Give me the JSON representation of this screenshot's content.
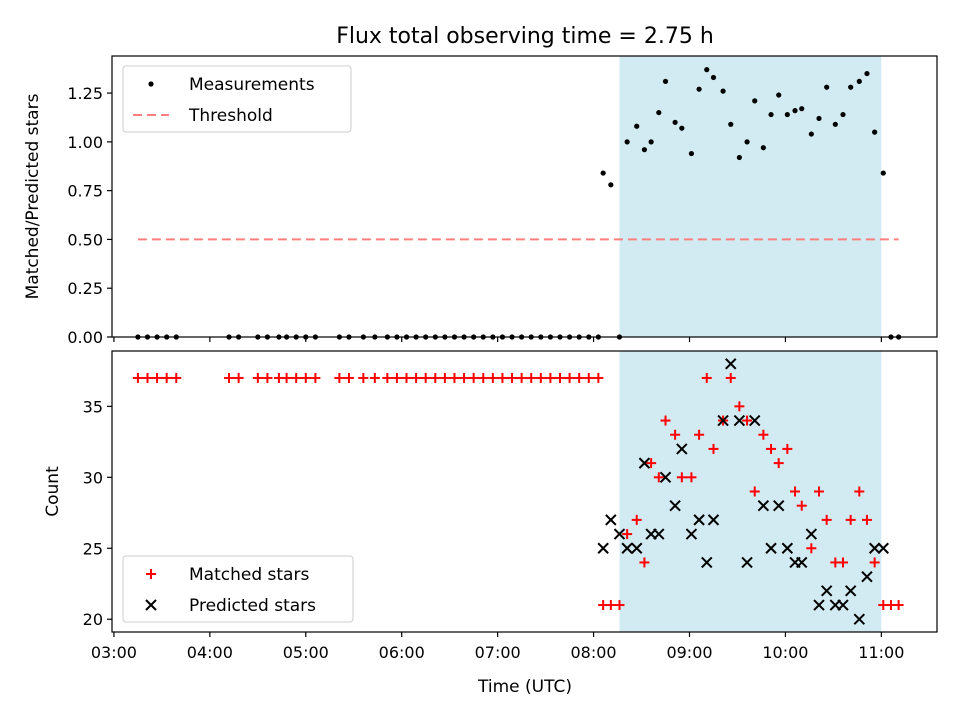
{
  "chart_data": {
    "title": "Flux total observing time = 2.75 h",
    "x_axis": {
      "label": "Time (UTC)",
      "range_hours": [
        2.98,
        11.58
      ],
      "ticks": [
        {
          "value": 3,
          "label": "03:00"
        },
        {
          "value": 4,
          "label": "04:00"
        },
        {
          "value": 5,
          "label": "05:00"
        },
        {
          "value": 6,
          "label": "06:00"
        },
        {
          "value": 7,
          "label": "07:00"
        },
        {
          "value": 8,
          "label": "08:00"
        },
        {
          "value": 9,
          "label": "09:00"
        },
        {
          "value": 10,
          "label": "10:00"
        },
        {
          "value": 11,
          "label": "11:00"
        }
      ]
    },
    "observing_window_hours": [
      8.27,
      11.0
    ],
    "observing_window_color": "#add8e6",
    "panels": [
      {
        "type": "scatter",
        "ylabel": "Matched/Predicted stars",
        "ylim": [
          0,
          1.44
        ],
        "yticks": [
          {
            "value": 0,
            "label": "0.00"
          },
          {
            "value": 0.25,
            "label": "0.25"
          },
          {
            "value": 0.5,
            "label": "0.50"
          },
          {
            "value": 0.75,
            "label": "0.75"
          },
          {
            "value": 1.0,
            "label": "1.00"
          },
          {
            "value": 1.25,
            "label": "1.25"
          }
        ],
        "legend_position": "upper-left",
        "series": [
          {
            "name": "Measurements",
            "marker": "dot",
            "color": "#000000",
            "x": [
              3.25,
              3.35,
              3.45,
              3.55,
              3.65,
              4.2,
              4.3,
              4.5,
              4.6,
              4.72,
              4.8,
              4.9,
              5.0,
              5.1,
              5.35,
              5.45,
              5.6,
              5.72,
              5.85,
              5.95,
              6.05,
              6.15,
              6.25,
              6.35,
              6.45,
              6.55,
              6.65,
              6.75,
              6.85,
              6.95,
              7.05,
              7.15,
              7.25,
              7.35,
              7.45,
              7.55,
              7.65,
              7.75,
              7.85,
              7.95,
              8.05,
              8.1,
              8.18,
              8.27,
              8.35,
              8.45,
              8.53,
              8.6,
              8.68,
              8.75,
              8.85,
              8.92,
              9.02,
              9.1,
              9.18,
              9.25,
              9.35,
              9.43,
              9.52,
              9.6,
              9.68,
              9.77,
              9.85,
              9.93,
              10.02,
              10.1,
              10.17,
              10.27,
              10.35,
              10.43,
              10.52,
              10.6,
              10.68,
              10.77,
              10.85,
              10.93,
              11.02,
              11.1,
              11.18
            ],
            "y": [
              0,
              0,
              0,
              0,
              0,
              0,
              0,
              0,
              0,
              0,
              0,
              0,
              0,
              0,
              0,
              0,
              0,
              0,
              0,
              0,
              0,
              0,
              0,
              0,
              0,
              0,
              0,
              0,
              0,
              0,
              0,
              0,
              0,
              0,
              0,
              0,
              0,
              0,
              0,
              0,
              0,
              0.84,
              0.78,
              0,
              1.0,
              1.08,
              0.96,
              1.0,
              1.15,
              1.31,
              1.1,
              1.07,
              0.94,
              1.27,
              1.37,
              1.33,
              1.26,
              1.09,
              0.92,
              1.0,
              1.21,
              0.97,
              1.14,
              1.24,
              1.14,
              1.16,
              1.17,
              1.04,
              1.12,
              1.28,
              1.09,
              1.14,
              1.28,
              1.31,
              1.35,
              1.05,
              0.84,
              0,
              0
            ]
          },
          {
            "name": "Threshold",
            "type": "line",
            "style": "dashed",
            "color": "#ff7f7f",
            "x": [
              3.25,
              11.18
            ],
            "y": [
              0.5,
              0.5
            ]
          }
        ]
      },
      {
        "type": "scatter",
        "ylabel": "Count",
        "ylim": [
          19.1,
          38.9
        ],
        "yticks": [
          {
            "value": 20,
            "label": "20"
          },
          {
            "value": 25,
            "label": "25"
          },
          {
            "value": 30,
            "label": "30"
          },
          {
            "value": 35,
            "label": "35"
          }
        ],
        "legend_position": "lower-left",
        "series": [
          {
            "name": "Matched stars",
            "marker": "plus",
            "color": "#ff0000",
            "x": [
              3.25,
              3.35,
              3.45,
              3.55,
              3.65,
              4.2,
              4.3,
              4.5,
              4.6,
              4.72,
              4.8,
              4.9,
              5.0,
              5.1,
              5.35,
              5.45,
              5.6,
              5.72,
              5.85,
              5.95,
              6.05,
              6.15,
              6.25,
              6.35,
              6.45,
              6.55,
              6.65,
              6.75,
              6.85,
              6.95,
              7.05,
              7.15,
              7.25,
              7.35,
              7.45,
              7.55,
              7.65,
              7.75,
              7.85,
              7.95,
              8.05,
              8.1,
              8.18,
              8.27,
              8.35,
              8.45,
              8.53,
              8.6,
              8.68,
              8.75,
              8.85,
              8.92,
              9.02,
              9.1,
              9.18,
              9.25,
              9.35,
              9.43,
              9.52,
              9.6,
              9.68,
              9.77,
              9.85,
              9.93,
              10.02,
              10.1,
              10.17,
              10.27,
              10.35,
              10.43,
              10.52,
              10.6,
              10.68,
              10.77,
              10.85,
              10.93,
              11.02,
              11.1,
              11.18
            ],
            "y": [
              37,
              37,
              37,
              37,
              37,
              37,
              37,
              37,
              37,
              37,
              37,
              37,
              37,
              37,
              37,
              37,
              37,
              37,
              37,
              37,
              37,
              37,
              37,
              37,
              37,
              37,
              37,
              37,
              37,
              37,
              37,
              37,
              37,
              37,
              37,
              37,
              37,
              37,
              37,
              37,
              37,
              21,
              21,
              21,
              26,
              27,
              24,
              31,
              30,
              34,
              33,
              30,
              30,
              33,
              37,
              32,
              34,
              37,
              35,
              34,
              29,
              33,
              32,
              31,
              32,
              29,
              28,
              25,
              29,
              27,
              24,
              24,
              27,
              29,
              27,
              24,
              21,
              21,
              21
            ]
          },
          {
            "name": "Predicted stars",
            "marker": "x",
            "color": "#000000",
            "x": [
              8.1,
              8.18,
              8.27,
              8.35,
              8.45,
              8.53,
              8.6,
              8.68,
              8.75,
              8.85,
              8.92,
              9.02,
              9.1,
              9.18,
              9.25,
              9.35,
              9.43,
              9.52,
              9.6,
              9.68,
              9.77,
              9.85,
              9.93,
              10.02,
              10.1,
              10.17,
              10.27,
              10.35,
              10.43,
              10.52,
              10.6,
              10.68,
              10.77,
              10.85,
              10.93,
              11.02
            ],
            "y": [
              25,
              27,
              26,
              25,
              25,
              31,
              26,
              26,
              30,
              28,
              32,
              26,
              27,
              24,
              27,
              34,
              38,
              34,
              24,
              34,
              28,
              25,
              28,
              25,
              24,
              24,
              26,
              21,
              22,
              21,
              21,
              22,
              20,
              23,
              25,
              25
            ]
          }
        ]
      }
    ]
  }
}
